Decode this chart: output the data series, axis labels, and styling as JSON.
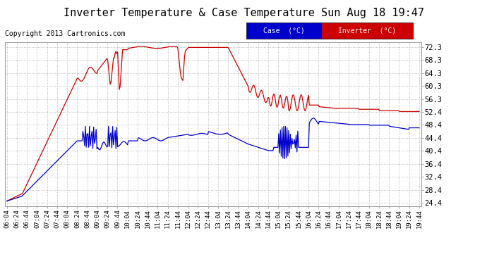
{
  "title": "Inverter Temperature & Case Temperature Sun Aug 18 19:47",
  "copyright": "Copyright 2013 Cartronics.com",
  "background_color": "#ffffff",
  "plot_bg_color": "#ffffff",
  "grid_color": "#aaaaaa",
  "y_ticks": [
    24.4,
    28.4,
    32.4,
    36.4,
    40.4,
    44.4,
    48.4,
    52.4,
    56.3,
    60.3,
    64.3,
    68.3,
    72.3
  ],
  "y_min": 23.5,
  "y_max": 73.8,
  "case_color": "#0000cc",
  "inverter_color": "#cc0000",
  "case_label": "Case  (°C)",
  "inverter_label": "Inverter  (°C)",
  "x_labels": [
    "06:04",
    "06:24",
    "06:44",
    "07:04",
    "07:24",
    "07:44",
    "08:04",
    "08:24",
    "08:44",
    "09:04",
    "09:24",
    "09:44",
    "10:04",
    "10:24",
    "10:44",
    "11:04",
    "11:24",
    "11:44",
    "12:04",
    "12:24",
    "12:44",
    "13:04",
    "13:24",
    "13:44",
    "14:04",
    "14:24",
    "14:44",
    "15:04",
    "15:24",
    "15:44",
    "16:04",
    "16:24",
    "16:44",
    "17:04",
    "17:24",
    "17:44",
    "18:04",
    "18:24",
    "18:44",
    "19:04",
    "19:24",
    "19:44"
  ],
  "title_fontsize": 11,
  "copyright_fontsize": 7,
  "tick_fontsize": 7.5,
  "xtick_fontsize": 6.5
}
